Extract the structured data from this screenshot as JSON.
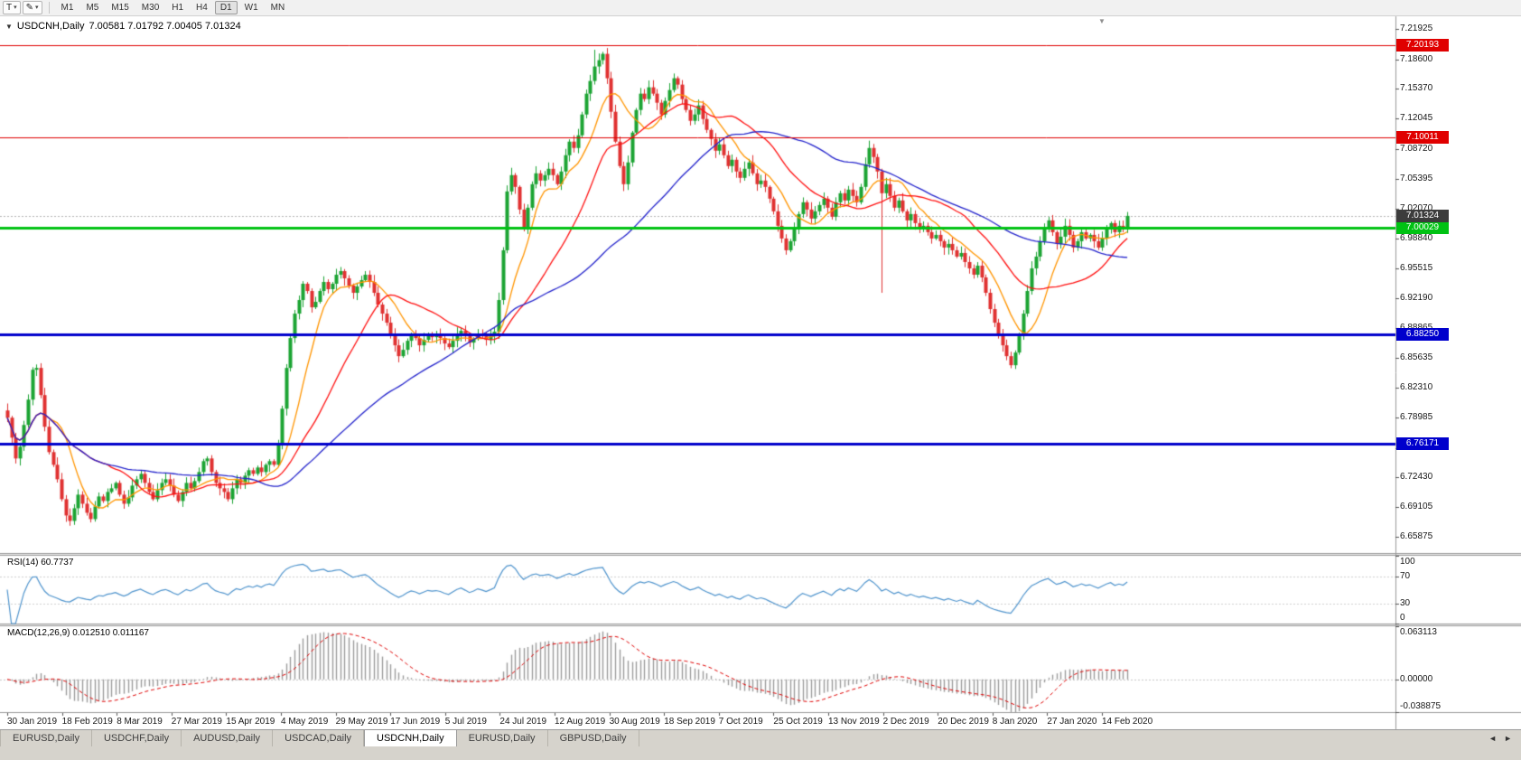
{
  "toolbar": {
    "templates_label": "T",
    "timeframes": [
      "M1",
      "M5",
      "M15",
      "M30",
      "H1",
      "H4",
      "D1",
      "W1",
      "MN"
    ],
    "active_timeframe": "D1"
  },
  "chart": {
    "dropdown_glyph": "▼",
    "title": "USDCNH,Daily",
    "ohlc": "7.00581 7.01792 7.00405 7.01324"
  },
  "rsi_panel": {
    "label": "RSI(14)",
    "value": "60.7737"
  },
  "macd_panel": {
    "label": "MACD(12,26,9)",
    "values": "0.012510 0.011167"
  },
  "shift_marker_glyph": "▼",
  "tabs": [
    {
      "label": "EURUSD,Daily",
      "active": false
    },
    {
      "label": "USDCHF,Daily",
      "active": false
    },
    {
      "label": "AUDUSD,Daily",
      "active": false
    },
    {
      "label": "USDCAD,Daily",
      "active": false
    },
    {
      "label": "USDCNH,Daily",
      "active": true
    },
    {
      "label": "EURUSD,Daily",
      "active": false
    },
    {
      "label": "GBPUSD,Daily",
      "active": false
    }
  ],
  "tab_scroll": {
    "left": "◄",
    "right": "►"
  },
  "chart_data": {
    "type": "candlestick",
    "symbol": "USDCNH",
    "period": "Daily",
    "ohlc_display": {
      "open": 7.00581,
      "high": 7.01792,
      "low": 7.00405,
      "close": 7.01324
    },
    "x_labels": [
      "30 Jan 2019",
      "18 Feb 2019",
      "8 Mar 2019",
      "27 Mar 2019",
      "15 Apr 2019",
      "4 May 2019",
      "29 May 2019",
      "17 Jun 2019",
      "5 Jul 2019",
      "24 Jul 2019",
      "12 Aug 2019",
      "30 Aug 2019",
      "18 Sep 2019",
      "7 Oct 2019",
      "25 Oct 2019",
      "13 Nov 2019",
      "2 Dec 2019",
      "20 Dec 2019",
      "8 Jan 2020",
      "27 Jan 2020",
      "14 Feb 2020"
    ],
    "y_ticks": [
      "7.21925",
      "7.18600",
      "7.15370",
      "7.12045",
      "7.08720",
      "7.05395",
      "7.02070",
      "6.98840",
      "6.95515",
      "6.92190",
      "6.88865",
      "6.85635",
      "6.82310",
      "6.78985",
      "6.75660",
      "6.72430",
      "6.69105",
      "6.65875"
    ],
    "price_range": [
      6.6405,
      7.2335
    ],
    "closes": [
      6.79,
      6.768,
      6.745,
      6.758,
      6.782,
      6.81,
      6.843,
      6.845,
      6.815,
      6.78,
      6.752,
      6.738,
      6.722,
      6.7,
      6.682,
      6.676,
      6.69,
      6.705,
      6.695,
      6.685,
      6.678,
      6.692,
      6.703,
      6.698,
      6.708,
      6.712,
      6.718,
      6.705,
      6.695,
      6.702,
      6.715,
      6.722,
      6.728,
      6.718,
      6.708,
      6.7,
      6.71,
      6.718,
      6.722,
      6.715,
      6.705,
      6.698,
      6.708,
      6.718,
      6.712,
      6.72,
      6.73,
      6.742,
      6.745,
      6.73,
      6.718,
      6.712,
      6.708,
      6.7,
      6.712,
      6.722,
      6.718,
      6.726,
      6.732,
      6.728,
      6.735,
      6.73,
      6.738,
      6.742,
      6.738,
      6.76,
      6.8,
      6.845,
      6.878,
      6.905,
      6.92,
      6.938,
      6.93,
      6.912,
      6.918,
      6.93,
      6.94,
      6.932,
      6.938,
      6.948,
      6.952,
      6.944,
      6.936,
      6.928,
      6.935,
      6.942,
      6.948,
      6.94,
      6.928,
      6.915,
      6.905,
      6.895,
      6.882,
      6.87,
      6.858,
      6.865,
      6.875,
      6.882,
      6.878,
      6.87,
      6.876,
      6.882,
      6.879,
      6.881,
      6.878,
      6.872,
      6.868,
      6.875,
      6.882,
      6.886,
      6.88,
      6.873,
      6.877,
      6.883,
      6.88,
      6.876,
      6.88,
      6.885,
      6.92,
      6.975,
      7.04,
      7.058,
      7.045,
      7.02,
      6.998,
      7.022,
      7.048,
      7.06,
      7.052,
      7.058,
      7.065,
      7.058,
      7.048,
      7.062,
      7.08,
      7.095,
      7.088,
      7.102,
      7.125,
      7.148,
      7.162,
      7.178,
      7.185,
      7.192,
      7.165,
      7.128,
      7.095,
      7.068,
      7.048,
      7.072,
      7.105,
      7.13,
      7.148,
      7.142,
      7.155,
      7.148,
      7.138,
      7.125,
      7.14,
      7.152,
      7.165,
      7.158,
      7.142,
      7.13,
      7.118,
      7.125,
      7.135,
      7.12,
      7.108,
      7.098,
      7.085,
      7.092,
      7.08,
      7.068,
      7.075,
      7.062,
      7.055,
      7.065,
      7.072,
      7.06,
      7.048,
      7.052,
      7.045,
      7.032,
      7.018,
      7.002,
      6.988,
      6.975,
      6.985,
      7.0,
      7.015,
      7.028,
      7.02,
      7.01,
      7.018,
      7.025,
      7.032,
      7.022,
      7.012,
      7.028,
      7.038,
      7.03,
      7.042,
      7.035,
      7.028,
      7.045,
      7.07,
      7.088,
      7.078,
      7.062,
      7.038,
      7.048,
      7.035,
      7.022,
      7.03,
      7.018,
      7.008,
      7.015,
      7.005,
      6.998,
      7.002,
      6.995,
      6.988,
      6.992,
      6.985,
      6.978,
      6.982,
      6.975,
      6.968,
      6.972,
      6.962,
      6.955,
      6.948,
      6.958,
      6.945,
      6.928,
      6.91,
      6.895,
      6.882,
      6.87,
      6.858,
      6.848,
      6.862,
      6.88,
      6.905,
      6.93,
      6.955,
      6.968,
      6.985,
      6.998,
      7.008,
      6.995,
      6.982,
      6.99,
      7.002,
      6.992,
      6.978,
      6.985,
      6.995,
      6.988,
      6.992,
      6.985,
      6.978,
      6.988,
      6.998,
      7.005,
      6.995,
      7.002,
      6.998,
      7.013
    ],
    "wick": 0.0055,
    "candle_overrides": {
      "141": {
        "h": 7.1965
      },
      "210": {
        "l": 6.928
      }
    },
    "candle_colors": {
      "up": "#1ca433",
      "down": "#e03131"
    },
    "moving_averages": [
      {
        "period": 10,
        "color": "#ff9500"
      },
      {
        "period": 25,
        "color": "#ff1111"
      },
      {
        "period": 55,
        "color": "#2424cc"
      }
    ],
    "levels": [
      {
        "value": 7.20193,
        "label": "7.20193",
        "color": "#e00000",
        "width": 1
      },
      {
        "value": 7.10011,
        "label": "7.10011",
        "color": "#e00000",
        "width": 1
      },
      {
        "value": 7.00029,
        "label": "7.00029",
        "color": "#00c213",
        "width": 3
      },
      {
        "value": 6.8825,
        "label": "6.88250",
        "color": "#0000cc",
        "width": 3
      },
      {
        "value": 6.76171,
        "label": "6.76171",
        "color": "#0000cc",
        "width": 3
      }
    ],
    "current_price": {
      "value": 7.01324,
      "label": "7.01324",
      "bg": "#3c3c3c"
    },
    "rsi": {
      "period": 14,
      "last": 60.7737,
      "color": "#4f94cd",
      "scale": [
        "100",
        "70",
        "30",
        "0"
      ],
      "guide_levels": [
        70,
        30
      ]
    },
    "macd": {
      "fast": 12,
      "slow": 26,
      "signal": 9,
      "last_main": 0.01251,
      "last_signal": 0.011167,
      "scale_top": "0.063113",
      "scale_zero": "0.00000",
      "scale_bottom": "-0.038875",
      "histogram_color": "#9b9b9b",
      "signal_color": "#e00000"
    }
  }
}
